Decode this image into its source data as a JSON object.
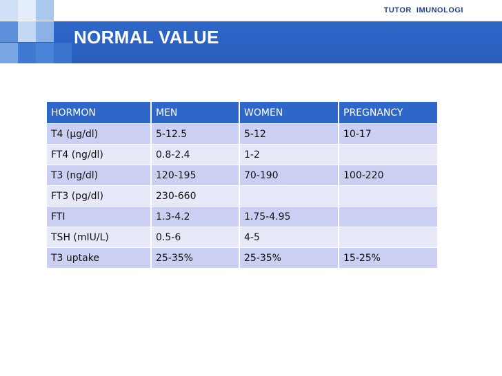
{
  "header": {
    "brand": "TUTOR  IMUNOLOGI",
    "title": "NORMAL VALUE"
  },
  "table": {
    "columns": [
      "HORMON",
      "MEN",
      "WOMEN",
      "PREGNANCY"
    ],
    "rows": [
      [
        "T4 (µg/dl)",
        "5-12.5",
        "5-12",
        "10-17"
      ],
      [
        "FT4 (ng/dl)",
        "0.8-2.4",
        "1-2",
        ""
      ],
      [
        "T3 (ng/dl)",
        "120-195",
        "70-190",
        "100-220"
      ],
      [
        "FT3 (pg/dl)",
        "230-660",
        "",
        ""
      ],
      [
        "FTI",
        "1.3-4.2",
        "1.75-4.95",
        ""
      ],
      [
        "TSH (mIU/L)",
        "0.5-6",
        "4-5",
        ""
      ],
      [
        "T3 uptake",
        "25-35%",
        "25-35%",
        "15-25%"
      ]
    ]
  },
  "colors": {
    "header_blue": "#2c63c4",
    "table_header": "#2f67c8",
    "row_odd": "#cbd0f3",
    "row_even": "#e7e8f8",
    "brand_text": "#1f3f8f"
  }
}
